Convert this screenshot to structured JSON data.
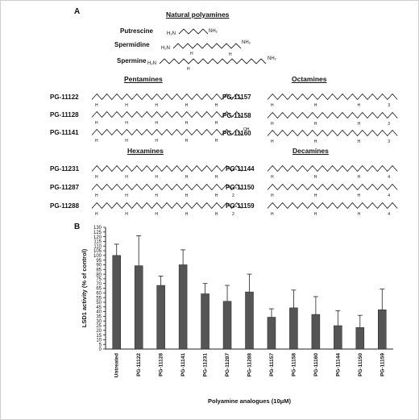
{
  "panel_a": {
    "label": "A",
    "headings": {
      "natural": "Natural polyamines",
      "pentamines": "Pentamines",
      "octamines": "Octamines",
      "hexamines": "Hexamines",
      "decamines": "Decamines"
    },
    "natural": [
      "Putrescine",
      "Spermidine",
      "Spermine"
    ],
    "pentamines": [
      "PG-11122",
      "PG-11128",
      "PG-11141"
    ],
    "octamines": [
      "PG-11157",
      "PG-11158",
      "PG-11160"
    ],
    "hexamines": [
      "PG-11231",
      "PG-11287",
      "PG-11288"
    ],
    "decamines": [
      "PG-11144",
      "PG-11150",
      "PG-11159"
    ],
    "atom_labels": {
      "h2n": "H₂N",
      "nh2": "NH₂",
      "h": "H",
      "n": "N",
      "oh": "OH",
      "sub2": "2",
      "sub3": "3",
      "sub4": "4"
    }
  },
  "panel_b": {
    "label": "B"
  },
  "chart_data": {
    "type": "bar",
    "ylabel": "LSD1 activity (% of control)",
    "xlabel": "Polyamine analogues (10μM)",
    "ylim": [
      0,
      130
    ],
    "yticks": [
      0,
      5,
      10,
      15,
      20,
      25,
      30,
      35,
      40,
      45,
      50,
      55,
      60,
      65,
      70,
      75,
      80,
      85,
      90,
      95,
      100,
      105,
      110,
      115,
      120,
      125,
      130
    ],
    "categories": [
      "Untreated",
      "PG-11122",
      "PG-11128",
      "PG-11141",
      "PG-11231",
      "PG-11287",
      "PG-11288",
      "PG-11157",
      "PG-11158",
      "PG-11160",
      "PG-11144",
      "PG-11150",
      "PG-11159"
    ],
    "values": [
      100,
      89,
      68,
      90,
      59,
      51,
      61,
      34,
      44,
      37,
      25,
      23,
      42
    ],
    "error": [
      12,
      32,
      10,
      16,
      11,
      17,
      19,
      9,
      19,
      19,
      16,
      13,
      22
    ],
    "bar_color": "#555555"
  }
}
